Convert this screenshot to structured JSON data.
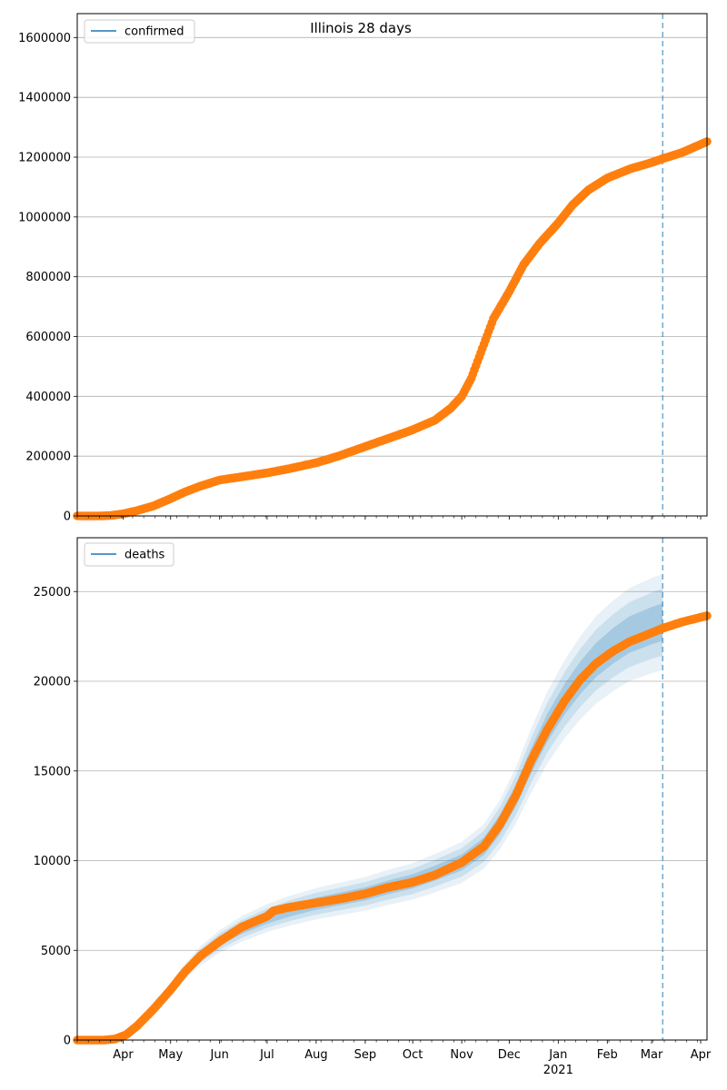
{
  "title": "Illinois 28 days",
  "colors": {
    "observed": "#ff7f0e",
    "model": "#1f77b4",
    "band": "#1f77b4",
    "grid": "#b0b0b0",
    "cutoff": "#1f77b4"
  },
  "x_axis": {
    "labels": [
      "Apr",
      "May",
      "Jun",
      "Jul",
      "Aug",
      "Sep",
      "Oct",
      "Nov",
      "Dec",
      "Jan",
      "Feb",
      "Mar",
      "Apr"
    ],
    "year_label": "2021"
  },
  "chart_data": [
    {
      "type": "scatter",
      "name": "confirmed",
      "legend": "confirmed",
      "legend_position": "upper left",
      "grid": "horizontal",
      "ylim": [
        0,
        1680000
      ],
      "yticks": [
        0,
        200000,
        400000,
        600000,
        800000,
        1000000,
        1200000,
        1400000,
        1600000
      ],
      "ytick_labels": [
        "0",
        "200000",
        "400000",
        "600000",
        "800000",
        "1000000",
        "1200000",
        "1400000",
        "1600000"
      ],
      "xlim": [
        "2020-03-03",
        "2021-04-05"
      ],
      "forecast_cutoff": "2021-03-08",
      "points": [
        [
          "2020-03-03",
          0
        ],
        [
          "2020-03-17",
          0
        ],
        [
          "2020-03-24",
          1500
        ],
        [
          "2020-04-01",
          7000
        ],
        [
          "2020-04-10",
          18000
        ],
        [
          "2020-04-20",
          33000
        ],
        [
          "2020-05-01",
          58000
        ],
        [
          "2020-05-10",
          80000
        ],
        [
          "2020-05-20",
          100000
        ],
        [
          "2020-06-01",
          120000
        ],
        [
          "2020-06-15",
          131000
        ],
        [
          "2020-07-01",
          144000
        ],
        [
          "2020-07-15",
          158000
        ],
        [
          "2020-08-01",
          178000
        ],
        [
          "2020-08-15",
          200000
        ],
        [
          "2020-09-01",
          232000
        ],
        [
          "2020-09-15",
          258000
        ],
        [
          "2020-10-01",
          288000
        ],
        [
          "2020-10-15",
          320000
        ],
        [
          "2020-10-25",
          360000
        ],
        [
          "2020-11-01",
          400000
        ],
        [
          "2020-11-07",
          460000
        ],
        [
          "2020-11-14",
          560000
        ],
        [
          "2020-11-21",
          660000
        ],
        [
          "2020-12-01",
          750000
        ],
        [
          "2020-12-10",
          840000
        ],
        [
          "2020-12-20",
          910000
        ],
        [
          "2021-01-01",
          980000
        ],
        [
          "2021-01-10",
          1040000
        ],
        [
          "2021-01-20",
          1090000
        ],
        [
          "2021-02-01",
          1130000
        ],
        [
          "2021-02-15",
          1160000
        ],
        [
          "2021-03-01",
          1182000
        ],
        [
          "2021-03-08",
          1195000
        ],
        [
          "2021-03-20",
          1215000
        ],
        [
          "2021-04-05",
          1252000
        ]
      ]
    },
    {
      "type": "scatter",
      "name": "deaths",
      "legend": "deaths",
      "legend_position": "upper left",
      "grid": "horizontal",
      "ylim": [
        0,
        28000
      ],
      "yticks": [
        0,
        5000,
        10000,
        15000,
        20000,
        25000
      ],
      "ytick_labels": [
        "0",
        "5000",
        "10000",
        "15000",
        "20000",
        "25000"
      ],
      "xlim": [
        "2020-03-03",
        "2021-04-05"
      ],
      "forecast_cutoff": "2021-03-08",
      "points": [
        [
          "2020-03-03",
          0
        ],
        [
          "2020-03-20",
          0
        ],
        [
          "2020-03-27",
          60
        ],
        [
          "2020-04-03",
          300
        ],
        [
          "2020-04-10",
          800
        ],
        [
          "2020-04-20",
          1700
        ],
        [
          "2020-05-01",
          2800
        ],
        [
          "2020-05-10",
          3800
        ],
        [
          "2020-05-20",
          4700
        ],
        [
          "2020-06-01",
          5500
        ],
        [
          "2020-06-15",
          6300
        ],
        [
          "2020-07-01",
          6900
        ],
        [
          "2020-07-05",
          7200
        ],
        [
          "2020-07-15",
          7400
        ],
        [
          "2020-08-01",
          7650
        ],
        [
          "2020-08-15",
          7850
        ],
        [
          "2020-09-01",
          8150
        ],
        [
          "2020-09-15",
          8500
        ],
        [
          "2020-10-01",
          8800
        ],
        [
          "2020-10-15",
          9200
        ],
        [
          "2020-11-01",
          9900
        ],
        [
          "2020-11-15",
          10800
        ],
        [
          "2020-11-25",
          12000
        ],
        [
          "2020-12-05",
          13600
        ],
        [
          "2020-12-15",
          15600
        ],
        [
          "2020-12-25",
          17300
        ],
        [
          "2021-01-05",
          18900
        ],
        [
          "2021-01-15",
          20100
        ],
        [
          "2021-01-25",
          21000
        ],
        [
          "2021-02-05",
          21700
        ],
        [
          "2021-02-15",
          22200
        ],
        [
          "2021-03-01",
          22700
        ],
        [
          "2021-03-08",
          22950
        ],
        [
          "2021-03-20",
          23300
        ],
        [
          "2021-04-05",
          23650
        ]
      ],
      "band_median": [
        [
          "2020-03-03",
          0
        ],
        [
          "2020-03-20",
          0
        ],
        [
          "2020-03-27",
          60
        ],
        [
          "2020-04-03",
          300
        ],
        [
          "2020-04-10",
          800
        ],
        [
          "2020-04-20",
          1700
        ],
        [
          "2020-05-01",
          2800
        ],
        [
          "2020-05-10",
          3800
        ],
        [
          "2020-05-20",
          4700
        ],
        [
          "2020-06-01",
          5500
        ],
        [
          "2020-06-15",
          6200
        ],
        [
          "2020-07-01",
          6800
        ],
        [
          "2020-07-15",
          7200
        ],
        [
          "2020-08-01",
          7600
        ],
        [
          "2020-08-15",
          7850
        ],
        [
          "2020-09-01",
          8150
        ],
        [
          "2020-09-15",
          8500
        ],
        [
          "2020-10-01",
          8850
        ],
        [
          "2020-10-15",
          9300
        ],
        [
          "2020-11-01",
          9900
        ],
        [
          "2020-11-15",
          10800
        ],
        [
          "2020-11-25",
          12000
        ],
        [
          "2020-12-05",
          13600
        ],
        [
          "2020-12-15",
          15600
        ],
        [
          "2020-12-25",
          17400
        ],
        [
          "2021-01-05",
          19000
        ],
        [
          "2021-01-15",
          20200
        ],
        [
          "2021-01-25",
          21200
        ],
        [
          "2021-02-05",
          22000
        ],
        [
          "2021-02-15",
          22600
        ],
        [
          "2021-03-01",
          23100
        ],
        [
          "2021-03-08",
          23300
        ]
      ],
      "band_widths": [
        0.045,
        0.08,
        0.115
      ],
      "band_opacities": [
        0.22,
        0.14,
        0.1
      ]
    }
  ]
}
